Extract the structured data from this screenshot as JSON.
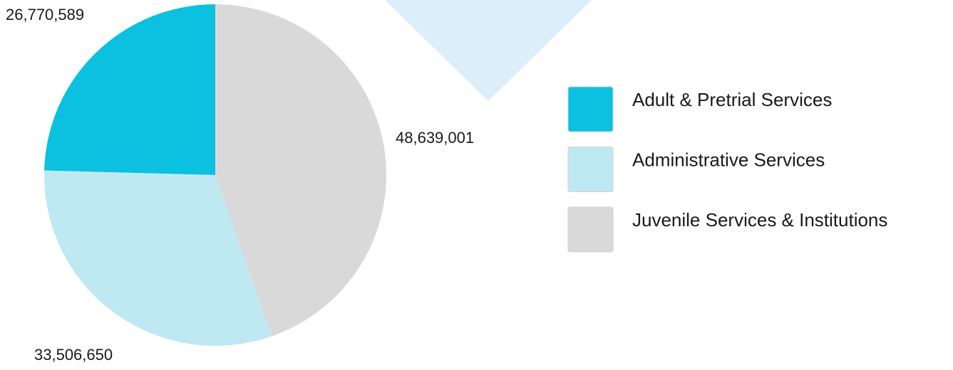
{
  "chart_data": {
    "type": "pie",
    "categories": [
      "Adult & Pretrial Services",
      "Administrative Services",
      "Juvenile Services & Institutions"
    ],
    "values": [
      26770589,
      33506650,
      48639001
    ],
    "value_labels": [
      "26,770,589",
      "33,506,650",
      "48,639,001"
    ],
    "colors": [
      "#0cc0df",
      "#bfe9f2",
      "#d9d9d9"
    ],
    "legend": "right"
  }
}
